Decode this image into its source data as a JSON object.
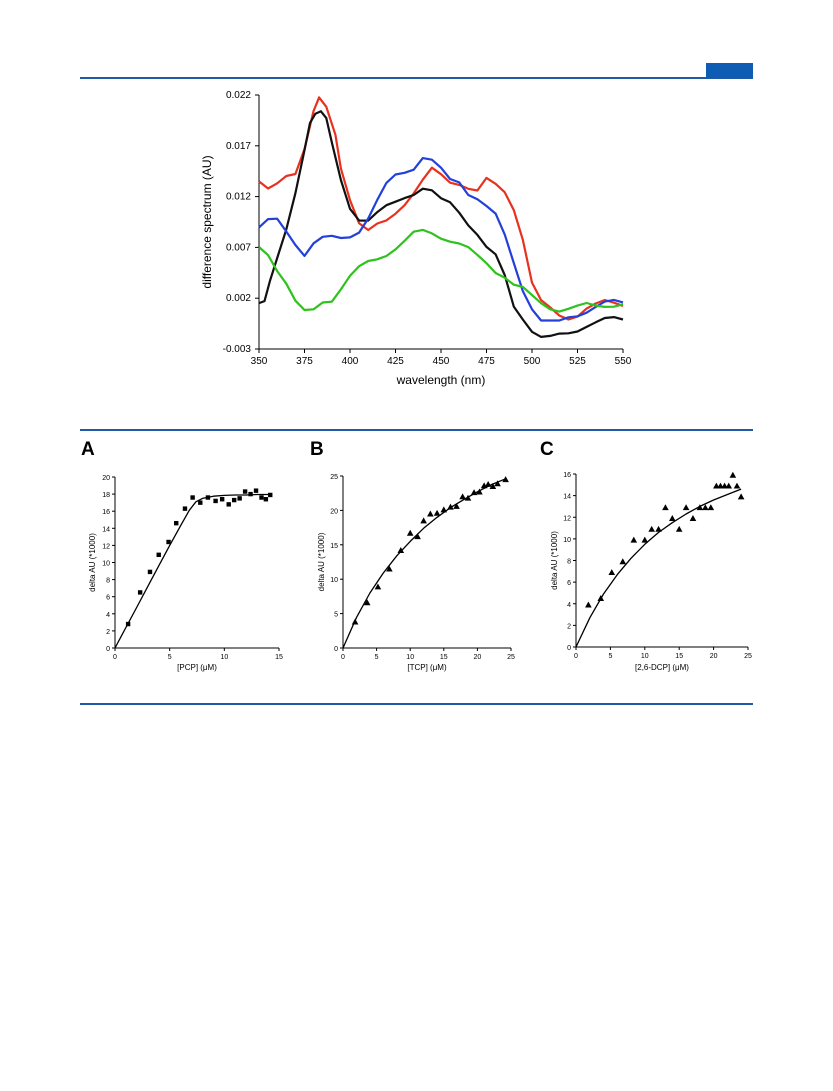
{
  "page": {
    "accent_color": "#1f5aa6",
    "tab_color": "#0f5cb5"
  },
  "chart_data": [
    {
      "id": "spectrum",
      "type": "line",
      "xlabel": "wavelength (nm)",
      "ylabel": "difference spectrum (AU)",
      "xlim": [
        350,
        550
      ],
      "ylim": [
        -0.003,
        0.022
      ],
      "xticks": [
        "350",
        "375",
        "400",
        "425",
        "450",
        "475",
        "500",
        "525",
        "550"
      ],
      "yticks": [
        "-0.003",
        "0.002",
        "0.007",
        "0.012",
        "0.017",
        "0.022"
      ],
      "xtick_values": [
        350,
        375,
        400,
        425,
        450,
        475,
        500,
        525,
        550
      ],
      "ytick_values": [
        -0.003,
        0.002,
        0.007,
        0.012,
        0.017,
        0.022
      ],
      "series": [
        {
          "color": "#e8321f",
          "x": [
            350,
            355,
            360,
            365,
            370,
            375,
            380,
            383,
            387,
            392,
            395,
            400,
            405,
            410,
            415,
            420,
            425,
            430,
            435,
            440,
            445,
            450,
            455,
            460,
            465,
            470,
            475,
            480,
            485,
            490,
            495,
            500,
            505,
            510,
            515,
            520,
            525,
            530,
            535,
            540,
            545,
            550
          ],
          "y": [
            0.0135,
            0.0125,
            0.013,
            0.014,
            0.0145,
            0.017,
            0.0205,
            0.0215,
            0.0205,
            0.018,
            0.015,
            0.012,
            0.0095,
            0.0085,
            0.009,
            0.0095,
            0.0105,
            0.0115,
            0.0125,
            0.0135,
            0.0145,
            0.014,
            0.0135,
            0.0135,
            0.013,
            0.0125,
            0.0135,
            0.013,
            0.0125,
            0.011,
            0.008,
            0.0035,
            0.0015,
            0.0008,
            0.0003,
            0.0002,
            0.0005,
            0.001,
            0.0012,
            0.0015,
            0.0015,
            0.0015
          ]
        },
        {
          "color": "#111111",
          "x": [
            350,
            353,
            356,
            360,
            365,
            370,
            375,
            378,
            381,
            384,
            387,
            390,
            395,
            400,
            405,
            410,
            415,
            420,
            425,
            430,
            435,
            440,
            445,
            450,
            455,
            460,
            465,
            470,
            475,
            480,
            485,
            490,
            495,
            500,
            505,
            510,
            515,
            520,
            525,
            530,
            535,
            540,
            545,
            550
          ],
          "y": [
            0.0015,
            0.002,
            0.004,
            0.006,
            0.0085,
            0.012,
            0.0165,
            0.0195,
            0.0205,
            0.0205,
            0.0195,
            0.017,
            0.0135,
            0.011,
            0.01,
            0.0098,
            0.0103,
            0.0108,
            0.0113,
            0.012,
            0.0125,
            0.013,
            0.0125,
            0.0115,
            0.0112,
            0.0105,
            0.0095,
            0.0085,
            0.007,
            0.006,
            0.004,
            0.0012,
            0.0002,
            -0.001,
            -0.0018,
            -0.002,
            -0.0018,
            -0.0015,
            -0.001,
            -0.0005,
            -0.0003,
            -0.0002,
            -0.0002,
            -0.0002
          ]
        },
        {
          "color": "#2340d8",
          "x": [
            350,
            355,
            360,
            365,
            370,
            375,
            380,
            385,
            390,
            395,
            400,
            405,
            410,
            415,
            420,
            425,
            430,
            435,
            440,
            445,
            450,
            455,
            460,
            465,
            470,
            475,
            480,
            485,
            490,
            495,
            500,
            505,
            510,
            515,
            520,
            525,
            530,
            535,
            540,
            545,
            550
          ],
          "y": [
            0.009,
            0.0095,
            0.0095,
            0.0085,
            0.0075,
            0.0065,
            0.0075,
            0.0078,
            0.0078,
            0.0078,
            0.0082,
            0.0088,
            0.01,
            0.0115,
            0.013,
            0.014,
            0.0145,
            0.015,
            0.016,
            0.0155,
            0.0145,
            0.0135,
            0.0135,
            0.0125,
            0.012,
            0.011,
            0.01,
            0.008,
            0.0055,
            0.003,
            0.0012,
            -0.0002,
            -0.0005,
            -0.0005,
            0.0001,
            0.0005,
            0.0009,
            0.0012,
            0.0014,
            0.0015,
            0.0015
          ]
        },
        {
          "color": "#2ec21c",
          "x": [
            350,
            355,
            360,
            365,
            370,
            375,
            380,
            385,
            390,
            395,
            400,
            405,
            410,
            415,
            420,
            425,
            430,
            435,
            440,
            445,
            450,
            455,
            460,
            465,
            470,
            475,
            480,
            485,
            490,
            495,
            500,
            505,
            510,
            515,
            520,
            525,
            530,
            535,
            540,
            545,
            550
          ],
          "y": [
            0.007,
            0.0065,
            0.005,
            0.0035,
            0.0015,
            0.0005,
            0.0008,
            0.0018,
            0.002,
            0.003,
            0.004,
            0.0048,
            0.0055,
            0.006,
            0.0065,
            0.007,
            0.0075,
            0.0082,
            0.0085,
            0.0085,
            0.0082,
            0.0078,
            0.0073,
            0.0067,
            0.006,
            0.0055,
            0.0048,
            0.0043,
            0.0033,
            0.0028,
            0.002,
            0.0015,
            0.0012,
            0.001,
            0.001,
            0.001,
            0.0012,
            0.0012,
            0.0014,
            0.0015,
            0.0015
          ]
        }
      ]
    },
    {
      "id": "A",
      "panel": "A",
      "type": "scatter",
      "xlabel": "[PCP]  (μM)",
      "ylabel": "delta AU (*1000)",
      "xlim": [
        0,
        15
      ],
      "ylim": [
        0,
        20
      ],
      "xtick_values": [
        0,
        5,
        10,
        15
      ],
      "ytick_values": [
        0,
        2,
        4,
        6,
        8,
        10,
        12,
        14,
        16,
        18,
        20
      ],
      "xticks": [
        "0",
        "5",
        "10",
        "15"
      ],
      "yticks": [
        "0",
        "2",
        "4",
        "6",
        "8",
        "10",
        "12",
        "14",
        "16",
        "18",
        "20"
      ],
      "marker": "square",
      "points": {
        "x": [
          1.2,
          2.3,
          3.2,
          4.0,
          4.9,
          5.6,
          6.4,
          7.1,
          7.8,
          8.5,
          9.2,
          9.8,
          10.4,
          10.9,
          11.4,
          11.9,
          12.4,
          12.9,
          13.4,
          13.8,
          14.2
        ],
        "y": [
          2.8,
          6.5,
          8.9,
          10.9,
          12.4,
          14.6,
          16.3,
          17.6,
          17.0,
          17.6,
          17.2,
          17.4,
          16.8,
          17.3,
          17.5,
          18.3,
          18.0,
          18.4,
          17.6,
          17.4,
          17.9
        ]
      },
      "fit": {
        "x": [
          0,
          1,
          2,
          3,
          4,
          5,
          6,
          6.8,
          7.4,
          8,
          9,
          10,
          11,
          12,
          13,
          14.3
        ],
        "y": [
          0,
          2.4,
          4.8,
          7.2,
          9.6,
          12,
          14.3,
          16.1,
          17.1,
          17.5,
          17.75,
          17.85,
          17.9,
          17.9,
          17.95,
          17.95
        ]
      }
    },
    {
      "id": "B",
      "panel": "B",
      "type": "scatter",
      "xlabel": "[TCP]  (μM)",
      "ylabel": "delta AU (*1000)",
      "xlim": [
        0,
        25
      ],
      "ylim": [
        0,
        25
      ],
      "xtick_values": [
        0,
        5,
        10,
        15,
        20,
        25
      ],
      "ytick_values": [
        0,
        5,
        10,
        15,
        20,
        25
      ],
      "xticks": [
        "0",
        "5",
        "10",
        "15",
        "20",
        "25"
      ],
      "yticks": [
        "0",
        "5",
        "10",
        "15",
        "20",
        "25"
      ],
      "marker": "triangle",
      "points": {
        "x": [
          1.8,
          3.6,
          5.2,
          6.9,
          8.6,
          10.0,
          11.1,
          12.0,
          13.0,
          14.0,
          15.0,
          16.0,
          16.9,
          17.8,
          18.6,
          19.5,
          20.3,
          21.0,
          21.6,
          22.3,
          23.0,
          24.2
        ],
        "y": [
          3.8,
          6.6,
          8.9,
          11.5,
          14.2,
          16.7,
          16.2,
          18.5,
          19.5,
          19.6,
          20.1,
          20.5,
          20.6,
          22.0,
          21.8,
          22.6,
          22.7,
          23.6,
          23.8,
          23.5,
          23.9,
          24.5
        ]
      },
      "fit": {
        "x": [
          0,
          2,
          4,
          6,
          8,
          10,
          12,
          14,
          16,
          18,
          20,
          22,
          24.2
        ],
        "y": [
          0,
          4.4,
          8.0,
          10.9,
          13.4,
          15.5,
          17.4,
          19.0,
          20.4,
          21.6,
          22.7,
          23.7,
          24.6
        ]
      }
    },
    {
      "id": "C",
      "panel": "C",
      "type": "scatter",
      "xlabel": "[2,6-DCP]  (μM)",
      "ylabel": "delta AU (*1000)",
      "xlim": [
        0,
        25
      ],
      "ylim": [
        0,
        16
      ],
      "xtick_values": [
        0,
        5,
        10,
        15,
        20,
        25
      ],
      "ytick_values": [
        0,
        2,
        4,
        6,
        8,
        10,
        12,
        14,
        16
      ],
      "xticks": [
        "0",
        "5",
        "10",
        "15",
        "20",
        "25"
      ],
      "yticks": [
        "0",
        "2",
        "4",
        "6",
        "8",
        "10",
        "12",
        "14",
        "16"
      ],
      "marker": "triangle",
      "points": {
        "x": [
          1.8,
          3.6,
          5.2,
          6.8,
          8.4,
          10.0,
          11.0,
          12.0,
          13.0,
          14.0,
          15.0,
          16.0,
          17.0,
          18.0,
          18.8,
          19.6,
          20.4,
          21.0,
          21.6,
          22.2,
          22.8,
          23.4,
          24.0
        ],
        "y": [
          3.9,
          4.5,
          6.9,
          7.9,
          9.9,
          9.9,
          10.9,
          10.9,
          12.9,
          11.9,
          10.9,
          12.9,
          11.9,
          12.9,
          12.9,
          12.9,
          14.9,
          14.9,
          14.9,
          14.9,
          15.9,
          14.9,
          13.9
        ]
      },
      "fit": {
        "x": [
          0,
          2,
          4,
          6,
          8,
          10,
          12,
          14,
          16,
          18,
          20,
          22,
          24
        ],
        "y": [
          0,
          2.7,
          4.9,
          6.7,
          8.2,
          9.5,
          10.6,
          11.5,
          12.3,
          13.0,
          13.6,
          14.1,
          14.6
        ]
      }
    }
  ]
}
